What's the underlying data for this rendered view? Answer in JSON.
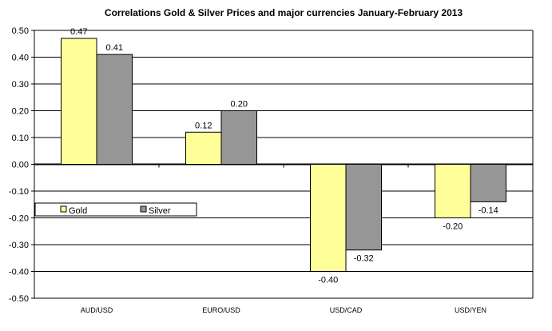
{
  "chart_data": {
    "type": "bar",
    "title": "Correlations Gold & Silver Prices and major currencies January-February 2013",
    "xlabel": "",
    "ylabel": "",
    "ylim": [
      -0.5,
      0.5
    ],
    "yticks": [
      "0.50",
      "0.40",
      "0.30",
      "0.20",
      "0.10",
      "0.00",
      "-0.10",
      "-0.20",
      "-0.30",
      "-0.40",
      "-0.50"
    ],
    "ytick_values": [
      0.5,
      0.4,
      0.3,
      0.2,
      0.1,
      0,
      -0.1,
      -0.2,
      -0.3,
      -0.4,
      -0.5
    ],
    "grid": true,
    "legend_position": "left, below zero line",
    "categories": [
      "AUD/USD",
      "EURO/USD",
      "USD/CAD",
      "USD/YEN"
    ],
    "series": [
      {
        "name": "Gold",
        "color": "#FFFF99",
        "values": [
          0.47,
          0.12,
          -0.4,
          -0.2
        ],
        "labels": [
          "0.47",
          "0.12",
          "-0.40",
          "-0.20"
        ]
      },
      {
        "name": "Silver",
        "color": "#969696",
        "values": [
          0.41,
          0.2,
          -0.32,
          -0.14
        ],
        "labels": [
          "0.41",
          "0.20",
          "-0.32",
          "-0.14"
        ]
      }
    ]
  }
}
